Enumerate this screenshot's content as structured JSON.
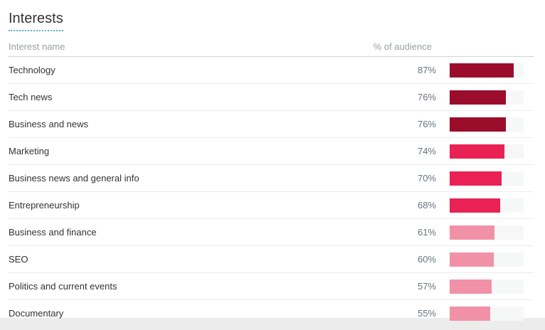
{
  "panel": {
    "title": "Interests"
  },
  "table": {
    "columns": {
      "interest": "Interest name",
      "audience": "% of audience"
    },
    "rows": [
      {
        "label": "Technology",
        "value": 87,
        "display": "87%",
        "bar_color": "#9c0d2b"
      },
      {
        "label": "Tech news",
        "value": 76,
        "display": "76%",
        "bar_color": "#9c0d2b"
      },
      {
        "label": "Business and news",
        "value": 76,
        "display": "76%",
        "bar_color": "#9c0d2b"
      },
      {
        "label": "Marketing",
        "value": 74,
        "display": "74%",
        "bar_color": "#ea2154"
      },
      {
        "label": "Business news and general info",
        "value": 70,
        "display": "70%",
        "bar_color": "#ea2154"
      },
      {
        "label": "Entrepreneurship",
        "value": 68,
        "display": "68%",
        "bar_color": "#ea2154"
      },
      {
        "label": "Business and finance",
        "value": 61,
        "display": "61%",
        "bar_color": "#f191a7"
      },
      {
        "label": "SEO",
        "value": 60,
        "display": "60%",
        "bar_color": "#f191a7"
      },
      {
        "label": "Politics and current events",
        "value": 57,
        "display": "57%",
        "bar_color": "#f191a7"
      },
      {
        "label": "Documentary",
        "value": 55,
        "display": "55%",
        "bar_color": "#f191a7"
      }
    ]
  },
  "colors": {
    "bar_dark": "#9c0d2b",
    "bar_mid": "#ea2154",
    "bar_light": "#f191a7",
    "title_underline": "#58b0c6",
    "header_text": "#9aa0a5",
    "value_text": "#66757f",
    "label_text": "#333333"
  },
  "chart_data": {
    "type": "bar",
    "orientation": "horizontal",
    "title": "Interests",
    "xlabel": "% of audience",
    "ylabel": "Interest name",
    "categories": [
      "Technology",
      "Tech news",
      "Business and news",
      "Marketing",
      "Business news and general info",
      "Entrepreneurship",
      "Business and finance",
      "SEO",
      "Politics and current events",
      "Documentary"
    ],
    "values": [
      87,
      76,
      76,
      74,
      70,
      68,
      61,
      60,
      57,
      55
    ],
    "value_suffix": "%",
    "xlim": [
      0,
      100
    ],
    "grid": false,
    "legend": false,
    "bar_color_tiers": [
      {
        "min": 76,
        "color": "#9c0d2b"
      },
      {
        "min": 68,
        "color": "#ea2154"
      },
      {
        "min": 0,
        "color": "#f191a7"
      }
    ]
  }
}
